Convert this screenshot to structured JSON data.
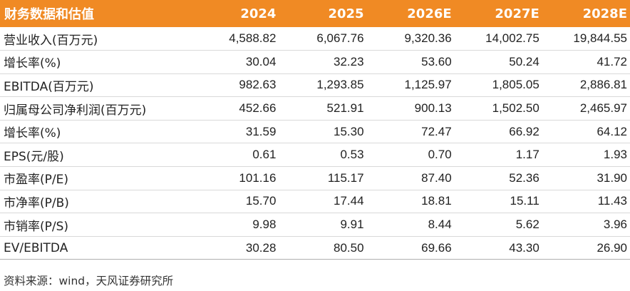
{
  "table": {
    "header": {
      "label": "财务数据和估值",
      "years": [
        "2024",
        "2025",
        "2026E",
        "2027E",
        "2028E"
      ]
    },
    "rows": [
      {
        "label": "营业收入(百万元)",
        "values": [
          "4,588.82",
          "6,067.76",
          "9,320.36",
          "14,002.75",
          "19,844.55"
        ]
      },
      {
        "label": "增长率(%)",
        "values": [
          "30.04",
          "32.23",
          "53.60",
          "50.24",
          "41.72"
        ]
      },
      {
        "label": "EBITDA(百万元)",
        "values": [
          "982.63",
          "1,293.85",
          "1,125.97",
          "1,805.05",
          "2,886.81"
        ]
      },
      {
        "label": "归属母公司净利润(百万元)",
        "values": [
          "452.66",
          "521.91",
          "900.13",
          "1,502.50",
          "2,465.97"
        ]
      },
      {
        "label": "增长率(%)",
        "values": [
          "31.59",
          "15.30",
          "72.47",
          "66.92",
          "64.12"
        ]
      },
      {
        "label": "EPS(元/股)",
        "values": [
          "0.61",
          "0.53",
          "0.70",
          "1.17",
          "1.93"
        ]
      },
      {
        "label": "市盈率(P/E)",
        "values": [
          "101.16",
          "115.17",
          "87.40",
          "52.36",
          "31.90"
        ]
      },
      {
        "label": "市净率(P/B)",
        "values": [
          "15.70",
          "17.44",
          "18.81",
          "15.11",
          "11.43"
        ]
      },
      {
        "label": "市销率(P/S)",
        "values": [
          "9.98",
          "9.91",
          "8.44",
          "5.62",
          "3.96"
        ]
      },
      {
        "label": "EV/EBITDA",
        "values": [
          "30.28",
          "80.50",
          "69.66",
          "43.30",
          "26.90"
        ]
      }
    ]
  },
  "source": "资料来源：wind，天风证券研究所",
  "colors": {
    "header_bg": "#f08a24",
    "header_text": "#ffffff"
  }
}
